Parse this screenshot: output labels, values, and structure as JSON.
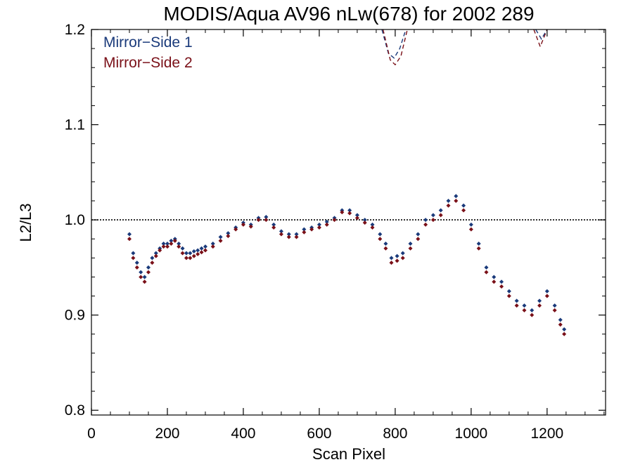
{
  "chart_data": {
    "type": "scatter",
    "title": "MODIS/Aqua AV96 nLw(678) for 2002 289",
    "xlabel": "Scan Pixel",
    "ylabel": "L2/L3",
    "xlim": [
      0,
      1354
    ],
    "ylim": [
      0.795,
      1.2
    ],
    "x_ticks": [
      0,
      200,
      400,
      600,
      800,
      1000,
      1200
    ],
    "x_tick_labels": [
      "0",
      "200",
      "400",
      "600",
      "800",
      "1000",
      "1200"
    ],
    "y_ticks": [
      0.8,
      0.9,
      1.0,
      1.1,
      1.2
    ],
    "y_tick_labels": [
      "0.8",
      "0.9",
      "1.0",
      "1.1",
      "1.2"
    ],
    "x_minor_step": 50,
    "y_minor_step": 0.02,
    "reference_line": {
      "y": 1.0,
      "style": "dotted"
    },
    "grid": false,
    "legend_position": "top-left",
    "series": [
      {
        "name": "Mirror−Side 1",
        "color": "#1a3a7a",
        "marker": "diamond",
        "points": [
          [
            100,
            0.985
          ],
          [
            110,
            0.965
          ],
          [
            120,
            0.955
          ],
          [
            130,
            0.945
          ],
          [
            140,
            0.94
          ],
          [
            150,
            0.95
          ],
          [
            160,
            0.96
          ],
          [
            170,
            0.965
          ],
          [
            180,
            0.97
          ],
          [
            190,
            0.975
          ],
          [
            200,
            0.975
          ],
          [
            210,
            0.978
          ],
          [
            220,
            0.98
          ],
          [
            230,
            0.975
          ],
          [
            240,
            0.97
          ],
          [
            250,
            0.965
          ],
          [
            260,
            0.965
          ],
          [
            270,
            0.967
          ],
          [
            280,
            0.968
          ],
          [
            290,
            0.97
          ],
          [
            300,
            0.972
          ],
          [
            320,
            0.975
          ],
          [
            340,
            0.982
          ],
          [
            360,
            0.986
          ],
          [
            380,
            0.992
          ],
          [
            400,
            0.997
          ],
          [
            420,
            0.995
          ],
          [
            440,
            1.002
          ],
          [
            460,
            1.003
          ],
          [
            480,
            0.995
          ],
          [
            500,
            0.988
          ],
          [
            520,
            0.985
          ],
          [
            540,
            0.985
          ],
          [
            560,
            0.99
          ],
          [
            580,
            0.992
          ],
          [
            600,
            0.995
          ],
          [
            620,
            0.998
          ],
          [
            640,
            1.002
          ],
          [
            660,
            1.01
          ],
          [
            680,
            1.01
          ],
          [
            700,
            1.005
          ],
          [
            720,
            1.0
          ],
          [
            740,
            0.995
          ],
          [
            760,
            0.985
          ],
          [
            775,
            0.975
          ],
          [
            790,
            0.96
          ],
          [
            805,
            0.962
          ],
          [
            820,
            0.965
          ],
          [
            840,
            0.975
          ],
          [
            860,
            0.985
          ],
          [
            880,
            1.0
          ],
          [
            900,
            1.005
          ],
          [
            920,
            1.01
          ],
          [
            940,
            1.02
          ],
          [
            960,
            1.025
          ],
          [
            980,
            1.015
          ],
          [
            1000,
            0.995
          ],
          [
            1020,
            0.975
          ],
          [
            1040,
            0.95
          ],
          [
            1060,
            0.94
          ],
          [
            1080,
            0.935
          ],
          [
            1100,
            0.925
          ],
          [
            1120,
            0.915
          ],
          [
            1140,
            0.91
          ],
          [
            1160,
            0.905
          ],
          [
            1180,
            0.915
          ],
          [
            1200,
            0.925
          ],
          [
            1220,
            0.91
          ],
          [
            1235,
            0.895
          ],
          [
            1245,
            0.885
          ]
        ],
        "dashed_curve": [
          [
            765,
            1.2
          ],
          [
            782,
            1.175
          ],
          [
            797,
            1.17
          ],
          [
            812,
            1.18
          ],
          [
            828,
            1.2
          ],
          [
            1170,
            1.2
          ],
          [
            1185,
            1.19
          ],
          [
            1200,
            1.2
          ]
        ]
      },
      {
        "name": "Mirror−Side 2",
        "color": "#7a1018",
        "marker": "diamond",
        "points": [
          [
            100,
            0.98
          ],
          [
            110,
            0.96
          ],
          [
            120,
            0.95
          ],
          [
            130,
            0.94
          ],
          [
            140,
            0.935
          ],
          [
            150,
            0.945
          ],
          [
            160,
            0.955
          ],
          [
            170,
            0.962
          ],
          [
            180,
            0.968
          ],
          [
            190,
            0.972
          ],
          [
            200,
            0.972
          ],
          [
            210,
            0.975
          ],
          [
            220,
            0.978
          ],
          [
            230,
            0.972
          ],
          [
            240,
            0.965
          ],
          [
            250,
            0.96
          ],
          [
            260,
            0.96
          ],
          [
            270,
            0.962
          ],
          [
            280,
            0.964
          ],
          [
            290,
            0.966
          ],
          [
            300,
            0.968
          ],
          [
            320,
            0.972
          ],
          [
            340,
            0.978
          ],
          [
            360,
            0.983
          ],
          [
            380,
            0.99
          ],
          [
            400,
            0.995
          ],
          [
            420,
            0.993
          ],
          [
            440,
            1.0
          ],
          [
            460,
            1.0
          ],
          [
            480,
            0.992
          ],
          [
            500,
            0.985
          ],
          [
            520,
            0.982
          ],
          [
            540,
            0.982
          ],
          [
            560,
            0.987
          ],
          [
            580,
            0.99
          ],
          [
            600,
            0.992
          ],
          [
            620,
            0.995
          ],
          [
            640,
            1.0
          ],
          [
            660,
            1.008
          ],
          [
            680,
            1.007
          ],
          [
            700,
            1.002
          ],
          [
            720,
            0.997
          ],
          [
            740,
            0.992
          ],
          [
            760,
            0.98
          ],
          [
            775,
            0.97
          ],
          [
            790,
            0.955
          ],
          [
            805,
            0.957
          ],
          [
            820,
            0.96
          ],
          [
            840,
            0.97
          ],
          [
            860,
            0.98
          ],
          [
            880,
            0.995
          ],
          [
            900,
            1.0
          ],
          [
            920,
            1.005
          ],
          [
            940,
            1.015
          ],
          [
            960,
            1.02
          ],
          [
            980,
            1.01
          ],
          [
            1000,
            0.99
          ],
          [
            1020,
            0.97
          ],
          [
            1040,
            0.945
          ],
          [
            1060,
            0.935
          ],
          [
            1080,
            0.93
          ],
          [
            1100,
            0.92
          ],
          [
            1120,
            0.91
          ],
          [
            1140,
            0.905
          ],
          [
            1160,
            0.9
          ],
          [
            1180,
            0.91
          ],
          [
            1200,
            0.92
          ],
          [
            1220,
            0.905
          ],
          [
            1235,
            0.89
          ],
          [
            1245,
            0.88
          ]
        ],
        "dashed_curve": [
          [
            768,
            1.2
          ],
          [
            787,
            1.168
          ],
          [
            800,
            1.163
          ],
          [
            815,
            1.172
          ],
          [
            832,
            1.2
          ],
          [
            1165,
            1.2
          ],
          [
            1182,
            1.182
          ],
          [
            1200,
            1.2
          ]
        ]
      }
    ]
  }
}
